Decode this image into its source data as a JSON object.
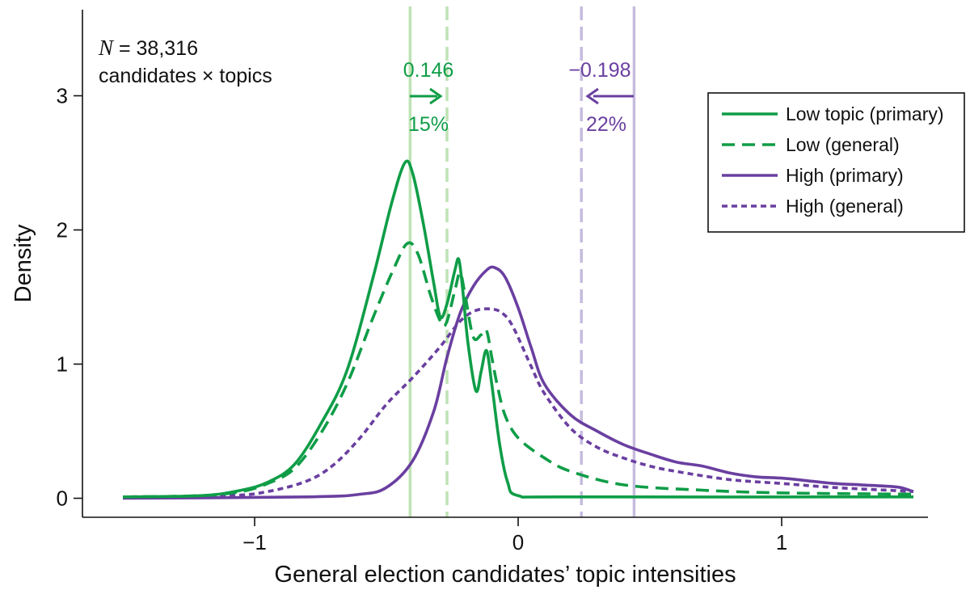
{
  "colors": {
    "green": "#0f9d47",
    "purple": "#6a3fa0",
    "light_green": "#bfe3b4",
    "light_purple": "#c6bcdf",
    "axis": "#111111"
  },
  "note": {
    "n_symbol": "N",
    "n_text": " = 38,316",
    "line2": "candidates × topics"
  },
  "annotations": {
    "low": {
      "value": "0.146",
      "percent": "15%",
      "arrow": "right"
    },
    "high": {
      "value": "−0.198",
      "percent": "22%",
      "arrow": "left"
    }
  },
  "chart_data": {
    "type": "line",
    "xlabel": "General election candidates’ topic intensities",
    "ylabel": "Density",
    "xlim": [
      -1.5,
      1.5
    ],
    "ylim": [
      -0.05,
      3.7
    ],
    "x_ticks": [
      -1,
      0,
      1
    ],
    "x_tick_labels": [
      "−1",
      "0",
      "1"
    ],
    "y_ticks": [
      0,
      1,
      2,
      3
    ],
    "y_tick_labels": [
      "0",
      "1",
      "2",
      "3"
    ],
    "grid": false,
    "legend_position": "top-right",
    "reference_lines": [
      {
        "x": -0.41,
        "color": "light_green",
        "style": "solid"
      },
      {
        "x": -0.27,
        "color": "light_green",
        "style": "dashed"
      },
      {
        "x": 0.24,
        "color": "light_purple",
        "style": "dashed"
      },
      {
        "x": 0.44,
        "color": "light_purple",
        "style": "solid"
      }
    ],
    "series": [
      {
        "name": "Low topic (primary)",
        "color": "green",
        "style": "solid",
        "points": [
          [
            -1.5,
            0.01
          ],
          [
            -1.2,
            0.02
          ],
          [
            -1.05,
            0.06
          ],
          [
            -0.95,
            0.12
          ],
          [
            -0.85,
            0.25
          ],
          [
            -0.75,
            0.55
          ],
          [
            -0.65,
            0.95
          ],
          [
            -0.55,
            1.65
          ],
          [
            -0.48,
            2.2
          ],
          [
            -0.43,
            2.5
          ],
          [
            -0.4,
            2.42
          ],
          [
            -0.36,
            2.05
          ],
          [
            -0.32,
            1.6
          ],
          [
            -0.295,
            1.35
          ],
          [
            -0.27,
            1.45
          ],
          [
            -0.24,
            1.7
          ],
          [
            -0.225,
            1.78
          ],
          [
            -0.21,
            1.55
          ],
          [
            -0.19,
            1.15
          ],
          [
            -0.16,
            0.8
          ],
          [
            -0.14,
            0.95
          ],
          [
            -0.12,
            1.1
          ],
          [
            -0.1,
            0.85
          ],
          [
            -0.07,
            0.4
          ],
          [
            -0.04,
            0.12
          ],
          [
            0,
            0.02
          ],
          [
            0.2,
            0.01
          ],
          [
            1.5,
            0.01
          ]
        ]
      },
      {
        "name": "Low (general)",
        "color": "green",
        "style": "dashed",
        "points": [
          [
            -1.5,
            0.01
          ],
          [
            -1.2,
            0.02
          ],
          [
            -1.05,
            0.05
          ],
          [
            -0.95,
            0.11
          ],
          [
            -0.85,
            0.22
          ],
          [
            -0.75,
            0.48
          ],
          [
            -0.65,
            0.85
          ],
          [
            -0.55,
            1.35
          ],
          [
            -0.47,
            1.72
          ],
          [
            -0.42,
            1.9
          ],
          [
            -0.38,
            1.82
          ],
          [
            -0.33,
            1.5
          ],
          [
            -0.29,
            1.3
          ],
          [
            -0.27,
            1.32
          ],
          [
            -0.24,
            1.55
          ],
          [
            -0.22,
            1.68
          ],
          [
            -0.2,
            1.5
          ],
          [
            -0.17,
            1.2
          ],
          [
            -0.14,
            1.22
          ],
          [
            -0.12,
            1.25
          ],
          [
            -0.1,
            1.05
          ],
          [
            -0.08,
            0.85
          ],
          [
            -0.05,
            0.62
          ],
          [
            0,
            0.45
          ],
          [
            0.1,
            0.3
          ],
          [
            0.2,
            0.2
          ],
          [
            0.4,
            0.1
          ],
          [
            0.7,
            0.06
          ],
          [
            1.0,
            0.04
          ],
          [
            1.5,
            0.03
          ]
        ]
      },
      {
        "name": "High (primary)",
        "color": "purple",
        "style": "solid",
        "points": [
          [
            -1.5,
            0.0
          ],
          [
            -0.8,
            0.01
          ],
          [
            -0.6,
            0.03
          ],
          [
            -0.5,
            0.08
          ],
          [
            -0.4,
            0.28
          ],
          [
            -0.32,
            0.65
          ],
          [
            -0.27,
            1.05
          ],
          [
            -0.22,
            1.38
          ],
          [
            -0.17,
            1.58
          ],
          [
            -0.12,
            1.7
          ],
          [
            -0.09,
            1.72
          ],
          [
            -0.05,
            1.65
          ],
          [
            0,
            1.42
          ],
          [
            0.05,
            1.12
          ],
          [
            0.1,
            0.85
          ],
          [
            0.2,
            0.62
          ],
          [
            0.3,
            0.5
          ],
          [
            0.4,
            0.4
          ],
          [
            0.5,
            0.33
          ],
          [
            0.6,
            0.27
          ],
          [
            0.7,
            0.24
          ],
          [
            0.8,
            0.19
          ],
          [
            0.9,
            0.16
          ],
          [
            1.0,
            0.15
          ],
          [
            1.1,
            0.13
          ],
          [
            1.2,
            0.11
          ],
          [
            1.3,
            0.1
          ],
          [
            1.4,
            0.09
          ],
          [
            1.45,
            0.08
          ],
          [
            1.5,
            0.05
          ]
        ]
      },
      {
        "name": "High (general)",
        "color": "purple",
        "style": "dotted",
        "points": [
          [
            -1.5,
            0.01
          ],
          [
            -1.1,
            0.02
          ],
          [
            -0.95,
            0.05
          ],
          [
            -0.8,
            0.13
          ],
          [
            -0.7,
            0.25
          ],
          [
            -0.6,
            0.45
          ],
          [
            -0.5,
            0.7
          ],
          [
            -0.4,
            0.9
          ],
          [
            -0.3,
            1.12
          ],
          [
            -0.22,
            1.32
          ],
          [
            -0.16,
            1.4
          ],
          [
            -0.1,
            1.41
          ],
          [
            -0.06,
            1.38
          ],
          [
            -0.02,
            1.28
          ],
          [
            0.05,
            0.98
          ],
          [
            0.1,
            0.78
          ],
          [
            0.2,
            0.52
          ],
          [
            0.3,
            0.38
          ],
          [
            0.4,
            0.3
          ],
          [
            0.5,
            0.24
          ],
          [
            0.6,
            0.2
          ],
          [
            0.8,
            0.14
          ],
          [
            1.0,
            0.11
          ],
          [
            1.2,
            0.08
          ],
          [
            1.4,
            0.06
          ],
          [
            1.5,
            0.05
          ]
        ]
      }
    ]
  }
}
